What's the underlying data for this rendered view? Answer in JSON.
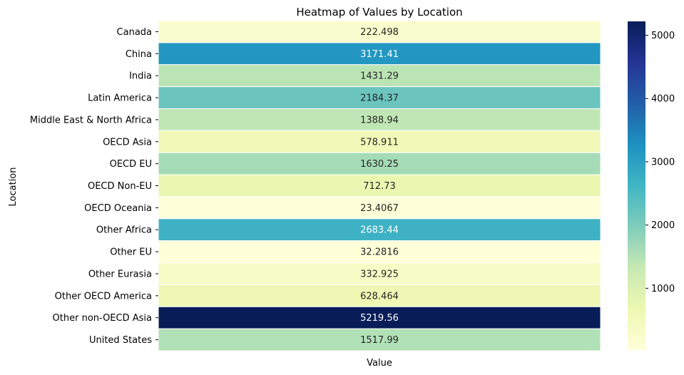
{
  "chart_data": {
    "type": "heatmap",
    "title": "Heatmap of Values by Location",
    "xlabel": "Value",
    "ylabel": "Location",
    "x_categories": [],
    "rows": [
      {
        "label": "Canada",
        "value": 222.498,
        "text": "222.498"
      },
      {
        "label": "China",
        "value": 3171.41,
        "text": "3171.41"
      },
      {
        "label": "India",
        "value": 1431.29,
        "text": "1431.29"
      },
      {
        "label": "Latin America",
        "value": 2184.37,
        "text": "2184.37"
      },
      {
        "label": "Middle East & North Africa",
        "value": 1388.94,
        "text": "1388.94"
      },
      {
        "label": "OECD Asia",
        "value": 578.911,
        "text": "578.911"
      },
      {
        "label": "OECD EU ",
        "value": 1630.25,
        "text": "1630.25"
      },
      {
        "label": "OECD Non-EU",
        "value": 712.73,
        "text": "712.73"
      },
      {
        "label": "OECD Oceania",
        "value": 23.4067,
        "text": "23.4067"
      },
      {
        "label": "Other Africa",
        "value": 2683.44,
        "text": "2683.44"
      },
      {
        "label": "Other EU",
        "value": 32.2816,
        "text": "32.2816"
      },
      {
        "label": "Other Eurasia",
        "value": 332.925,
        "text": "332.925"
      },
      {
        "label": "Other OECD America",
        "value": 628.464,
        "text": "628.464"
      },
      {
        "label": "Other non-OECD Asia",
        "value": 5219.56,
        "text": "5219.56"
      },
      {
        "label": "United States",
        "value": 1517.99,
        "text": "1517.99"
      }
    ],
    "colormap": "YlGnBu",
    "colorbar": {
      "vmin": 23.4067,
      "vmax": 5219.56,
      "ticks": [
        1000,
        2000,
        3000,
        4000,
        5000
      ]
    },
    "colormap_stops": [
      "#ffffd9",
      "#edf8b1",
      "#c7e9b4",
      "#7fcdbb",
      "#41b6c4",
      "#1d91c0",
      "#225ea8",
      "#253494",
      "#081d58"
    ],
    "grid": false,
    "legend": "colorbar-right"
  }
}
